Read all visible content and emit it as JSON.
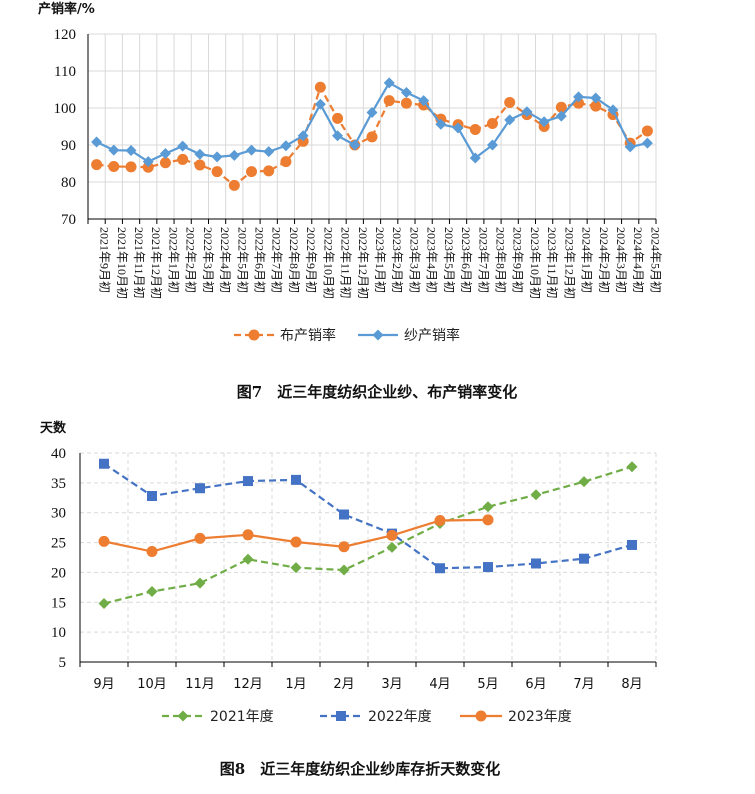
{
  "chart_data": [
    {
      "type": "line",
      "ylabel": "产销率/%",
      "ylim": [
        70,
        120
      ],
      "yticks": [
        70,
        80,
        90,
        100,
        110,
        120
      ],
      "grid": true,
      "legend_position": "bottom",
      "caption": "图7　近三年度纺织企业纱、布产销率变化",
      "categories": [
        "2021年9月初",
        "2021年10月初",
        "2021年11月初",
        "2021年12月初",
        "2022年1月初",
        "2022年2月初",
        "2022年3月初",
        "2022年4月初",
        "2022年5月初",
        "2022年6月初",
        "2022年7月初",
        "2022年8月初",
        "2022年9月初",
        "2022年10月初",
        "2022年11月初",
        "2022年12月初",
        "2023年1月初",
        "2023年2月初",
        "2023年3月初",
        "2023年4月初",
        "2023年5月初",
        "2023年6月初",
        "2023年7月初",
        "2023年8月初",
        "2023年9月初",
        "2023年10月初",
        "2023年11月初",
        "2023年12月初",
        "2024年1月初",
        "2024年2月初",
        "2024年3月初",
        "2024年4月初",
        "2024年5月初"
      ],
      "series": [
        {
          "name": "布产销率",
          "color": "#ED7D31",
          "style": "dashed",
          "marker": "circle",
          "values": [
            84.7,
            84.2,
            84.1,
            84.0,
            85.2,
            86.1,
            84.6,
            82.8,
            79.1,
            82.8,
            83.0,
            85.5,
            91.0,
            105.6,
            97.2,
            90.0,
            92.2,
            102.0,
            101.3,
            100.8,
            97.0,
            95.5,
            94.2,
            95.8,
            101.5,
            98.2,
            95.0,
            100.2,
            101.3,
            100.5,
            98.2,
            90.5,
            93.8
          ]
        },
        {
          "name": "纱产销率",
          "color": "#5B9BD5",
          "style": "solid",
          "marker": "diamond",
          "values": [
            90.8,
            88.6,
            88.5,
            85.5,
            87.7,
            89.7,
            87.5,
            86.8,
            87.2,
            88.6,
            88.2,
            89.8,
            92.5,
            101.0,
            92.5,
            90.0,
            98.8,
            106.8,
            104.2,
            102.0,
            95.6,
            94.6,
            86.5,
            90.0,
            96.8,
            99.0,
            96.3,
            97.8,
            103.0,
            102.7,
            99.5,
            89.5,
            90.5
          ]
        }
      ]
    },
    {
      "type": "line",
      "ylabel": "天数",
      "ylim": [
        5,
        40
      ],
      "yticks": [
        5,
        10,
        15,
        20,
        25,
        30,
        35,
        40
      ],
      "grid": true,
      "legend_position": "bottom",
      "caption": "图8　近三年度纺织企业纱库存折天数变化",
      "categories": [
        "9月",
        "10月",
        "11月",
        "12月",
        "1月",
        "2月",
        "3月",
        "4月",
        "5月",
        "6月",
        "7月",
        "8月"
      ],
      "series": [
        {
          "name": "2021年度",
          "color": "#70AD47",
          "style": "dashed",
          "marker": "diamond",
          "values": [
            14.8,
            16.8,
            18.2,
            22.2,
            20.8,
            20.4,
            24.2,
            28.2,
            31.0,
            33.0,
            35.2,
            37.7
          ]
        },
        {
          "name": "2022年度",
          "color": "#4472C4",
          "style": "dashed",
          "marker": "square",
          "values": [
            38.2,
            32.8,
            34.1,
            35.3,
            35.5,
            29.7,
            26.5,
            20.7,
            20.9,
            21.5,
            22.3,
            24.6
          ]
        },
        {
          "name": "2023年度",
          "color": "#ED7D31",
          "style": "solid",
          "marker": "circle",
          "values": [
            25.2,
            23.5,
            25.7,
            26.3,
            25.1,
            24.3,
            26.2,
            28.7,
            28.8,
            null,
            null,
            null
          ]
        }
      ]
    }
  ]
}
